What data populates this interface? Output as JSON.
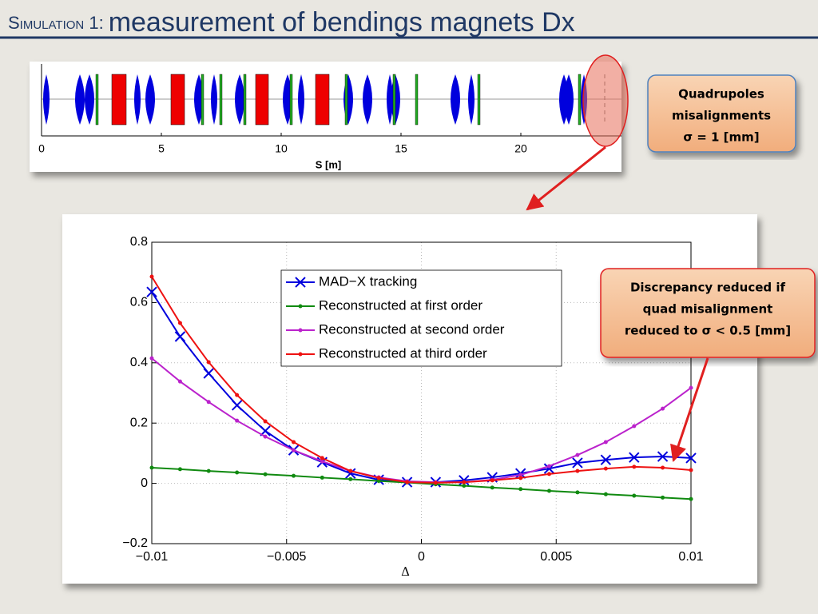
{
  "slide_title": {
    "prefix": "Simulation 1:",
    "main": "measurement of bendings magnets Dx"
  },
  "lattice": {
    "xlabel": "S [m]",
    "xlim": [
      0,
      24.2
    ],
    "xticks": [
      0,
      5,
      10,
      15,
      20
    ]
  },
  "callouts": [
    {
      "lines": [
        "Quadrupoles",
        "misalignments",
        "σ = 1 [mm]"
      ]
    },
    {
      "lines": [
        "Discrepancy reduced if",
        "quad misalignment",
        "reduced to σ < 0.5 [mm]"
      ]
    }
  ],
  "chart_data": {
    "type": "line",
    "xlabel": "Δ",
    "x": [
      -0.01,
      -0.00895,
      -0.00789,
      -0.00684,
      -0.00579,
      -0.00474,
      -0.00368,
      -0.00263,
      -0.00158,
      -0.00053,
      0.00053,
      0.00158,
      0.00263,
      0.00368,
      0.00474,
      0.00579,
      0.00684,
      0.00789,
      0.00895,
      0.01
    ],
    "series": [
      {
        "name": "MAD−X tracking",
        "color": "#0000dd",
        "marker": "x",
        "values": [
          0.635,
          0.487,
          0.365,
          0.259,
          0.174,
          0.11,
          0.07,
          0.033,
          0.012,
          0.004,
          0.004,
          0.01,
          0.02,
          0.033,
          0.049,
          0.068,
          0.078,
          0.086,
          0.089,
          0.084
        ]
      },
      {
        "name": "Reconstructed at first order",
        "color": "#108a10",
        "marker": "dot",
        "values": [
          0.052,
          0.047,
          0.041,
          0.036,
          0.03,
          0.025,
          0.019,
          0.014,
          0.008,
          0.003,
          -0.003,
          -0.008,
          -0.014,
          -0.019,
          -0.025,
          -0.03,
          -0.036,
          -0.041,
          -0.047,
          -0.052
        ]
      },
      {
        "name": "Reconstructed at second order",
        "color": "#bb22cc",
        "marker": "dot",
        "values": [
          0.415,
          0.338,
          0.27,
          0.208,
          0.155,
          0.11,
          0.073,
          0.041,
          0.02,
          0.007,
          0.004,
          0.004,
          0.012,
          0.028,
          0.057,
          0.094,
          0.137,
          0.19,
          0.248,
          0.317
        ]
      },
      {
        "name": "Reconstructed at third order",
        "color": "#ee1111",
        "marker": "dot",
        "values": [
          0.686,
          0.532,
          0.402,
          0.293,
          0.206,
          0.137,
          0.084,
          0.041,
          0.018,
          0.004,
          0.002,
          0.004,
          0.01,
          0.018,
          0.031,
          0.041,
          0.049,
          0.055,
          0.052,
          0.044
        ]
      }
    ],
    "xlim": [
      -0.01,
      0.01
    ],
    "xticks": [
      {
        "value": -0.01,
        "label": "−0.01"
      },
      {
        "value": -0.005,
        "label": "−0.005"
      },
      0,
      0.005,
      0.01
    ],
    "ylim": [
      -0.2,
      0.8
    ],
    "yticks": [
      {
        "value": -0.2,
        "label": "−0.2"
      },
      0,
      0.2,
      0.4,
      0.6,
      0.8
    ],
    "grid": true,
    "legend": "north"
  }
}
